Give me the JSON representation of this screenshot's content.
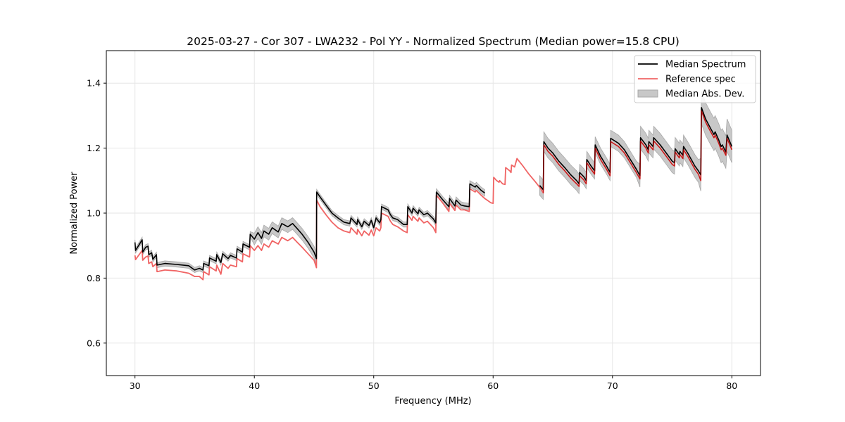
{
  "chart_data": {
    "type": "line",
    "title": "2025-03-27 - Cor 307 - LWA232 - Pol YY - Normalized Spectrum (Median power=15.8 CPU)",
    "xlabel": "Frequency (MHz)",
    "ylabel": "Normalized Power",
    "xlim": [
      27.6,
      82.4
    ],
    "ylim": [
      0.5,
      1.5
    ],
    "xticks": [
      30,
      40,
      50,
      60,
      70,
      80
    ],
    "yticks": [
      0.6,
      0.8,
      1.0,
      1.2,
      1.4
    ],
    "ytick_labels": [
      "0.6",
      "0.8",
      "1.0",
      "1.2",
      "1.4"
    ],
    "grid": true,
    "legend_position": "top-right",
    "legend": [
      {
        "name": "Median Spectrum",
        "color": "#000000",
        "kind": "line"
      },
      {
        "name": "Reference spec",
        "color": "#f06464",
        "kind": "line"
      },
      {
        "name": "Median Abs. Dev.",
        "color": "#c8c8c8",
        "kind": "band"
      }
    ],
    "median_segments": [
      [
        [
          30.0,
          0.91
        ],
        [
          30.05,
          0.885
        ],
        [
          30.3,
          0.9
        ],
        [
          30.6,
          0.918
        ],
        [
          30.65,
          0.88
        ],
        [
          30.9,
          0.895
        ],
        [
          31.1,
          0.898
        ],
        [
          31.15,
          0.872
        ],
        [
          31.4,
          0.878
        ],
        [
          31.5,
          0.858
        ],
        [
          31.8,
          0.872
        ],
        [
          31.85,
          0.84
        ],
        [
          32.5,
          0.845
        ],
        [
          33.5,
          0.842
        ],
        [
          34.5,
          0.838
        ],
        [
          35.0,
          0.825
        ],
        [
          35.4,
          0.83
        ],
        [
          35.7,
          0.825
        ],
        [
          35.75,
          0.845
        ],
        [
          36.2,
          0.838
        ],
        [
          36.25,
          0.862
        ],
        [
          36.8,
          0.852
        ],
        [
          36.85,
          0.872
        ],
        [
          37.2,
          0.848
        ],
        [
          37.35,
          0.875
        ],
        [
          37.8,
          0.86
        ],
        [
          38.0,
          0.87
        ],
        [
          38.5,
          0.862
        ],
        [
          38.55,
          0.89
        ],
        [
          39.0,
          0.88
        ],
        [
          39.05,
          0.905
        ],
        [
          39.6,
          0.895
        ],
        [
          39.65,
          0.935
        ],
        [
          40.0,
          0.92
        ],
        [
          40.3,
          0.94
        ],
        [
          40.6,
          0.922
        ],
        [
          40.8,
          0.945
        ],
        [
          41.2,
          0.935
        ],
        [
          41.5,
          0.955
        ],
        [
          42.0,
          0.942
        ],
        [
          42.3,
          0.968
        ],
        [
          42.8,
          0.958
        ],
        [
          43.2,
          0.968
        ],
        [
          43.6,
          0.952
        ],
        [
          44.0,
          0.935
        ],
        [
          44.5,
          0.91
        ],
        [
          45.0,
          0.88
        ],
        [
          45.2,
          0.86
        ],
        [
          45.22,
          1.065
        ],
        [
          45.5,
          1.05
        ],
        [
          46.0,
          1.025
        ],
        [
          46.5,
          1.0
        ],
        [
          47.0,
          0.985
        ],
        [
          47.5,
          0.972
        ],
        [
          48.0,
          0.968
        ],
        [
          48.1,
          0.985
        ],
        [
          48.6,
          0.965
        ],
        [
          48.65,
          0.98
        ],
        [
          49.0,
          0.958
        ],
        [
          49.2,
          0.975
        ],
        [
          49.6,
          0.962
        ],
        [
          49.8,
          0.978
        ],
        [
          50.0,
          0.955
        ],
        [
          50.2,
          0.985
        ],
        [
          50.5,
          0.97
        ],
        [
          50.6,
          0.98
        ],
        [
          50.65,
          1.02
        ],
        [
          51.2,
          1.01
        ],
        [
          51.4,
          0.995
        ],
        [
          51.6,
          0.985
        ],
        [
          52.0,
          0.98
        ],
        [
          52.5,
          0.965
        ],
        [
          52.8,
          0.965
        ],
        [
          52.85,
          1.02
        ],
        [
          53.2,
          1.0
        ],
        [
          53.3,
          1.015
        ],
        [
          53.7,
          0.998
        ],
        [
          53.8,
          1.01
        ],
        [
          54.2,
          0.995
        ],
        [
          54.5,
          1.0
        ],
        [
          55.0,
          0.982
        ],
        [
          55.2,
          0.97
        ],
        [
          55.25,
          1.065
        ],
        [
          55.8,
          1.04
        ],
        [
          56.3,
          1.02
        ],
        [
          56.35,
          1.045
        ],
        [
          56.8,
          1.022
        ],
        [
          56.9,
          1.04
        ],
        [
          57.3,
          1.025
        ],
        [
          57.6,
          1.022
        ],
        [
          58.0,
          1.02
        ],
        [
          58.05,
          1.09
        ],
        [
          58.5,
          1.08
        ],
        [
          58.6,
          1.085
        ],
        [
          59.0,
          1.07
        ],
        [
          59.3,
          1.062
        ]
      ],
      [
        [
          63.9,
          1.085
        ],
        [
          64.2,
          1.072
        ],
        [
          64.25,
          1.22
        ],
        [
          64.6,
          1.2
        ],
        [
          65.0,
          1.185
        ],
        [
          65.5,
          1.16
        ],
        [
          66.0,
          1.14
        ],
        [
          66.5,
          1.118
        ],
        [
          67.0,
          1.1
        ],
        [
          67.2,
          1.09
        ],
        [
          67.25,
          1.125
        ],
        [
          67.6,
          1.112
        ],
        [
          67.8,
          1.1
        ],
        [
          67.85,
          1.165
        ],
        [
          68.2,
          1.145
        ],
        [
          68.5,
          1.13
        ],
        [
          68.55,
          1.21
        ],
        [
          69.0,
          1.175
        ],
        [
          69.5,
          1.145
        ],
        [
          69.8,
          1.125
        ],
        [
          69.85,
          1.23
        ],
        [
          70.5,
          1.215
        ],
        [
          71.0,
          1.195
        ],
        [
          71.5,
          1.165
        ],
        [
          72.0,
          1.135
        ],
        [
          72.3,
          1.115
        ],
        [
          72.35,
          1.232
        ],
        [
          72.8,
          1.21
        ],
        [
          73.0,
          1.195
        ],
        [
          73.05,
          1.22
        ],
        [
          73.4,
          1.205
        ],
        [
          73.45,
          1.232
        ],
        [
          74.0,
          1.21
        ],
        [
          74.5,
          1.185
        ],
        [
          75.0,
          1.16
        ],
        [
          75.2,
          1.155
        ],
        [
          75.25,
          1.198
        ],
        [
          75.6,
          1.18
        ],
        [
          75.65,
          1.19
        ],
        [
          75.9,
          1.178
        ],
        [
          75.95,
          1.205
        ],
        [
          76.3,
          1.185
        ],
        [
          76.6,
          1.165
        ],
        [
          76.9,
          1.145
        ],
        [
          77.2,
          1.13
        ],
        [
          77.4,
          1.118
        ],
        [
          77.45,
          1.325
        ],
        [
          77.8,
          1.29
        ],
        [
          78.2,
          1.262
        ],
        [
          78.5,
          1.242
        ],
        [
          78.6,
          1.25
        ],
        [
          78.9,
          1.225
        ],
        [
          79.1,
          1.205
        ],
        [
          79.2,
          1.21
        ],
        [
          79.5,
          1.188
        ],
        [
          79.6,
          1.24
        ],
        [
          80.0,
          1.205
        ]
      ]
    ],
    "reference_curve": [
      [
        30.0,
        0.87
      ],
      [
        30.05,
        0.857
      ],
      [
        30.3,
        0.87
      ],
      [
        30.6,
        0.885
      ],
      [
        30.65,
        0.855
      ],
      [
        30.9,
        0.865
      ],
      [
        31.1,
        0.868
      ],
      [
        31.15,
        0.845
      ],
      [
        31.4,
        0.85
      ],
      [
        31.5,
        0.835
      ],
      [
        31.8,
        0.845
      ],
      [
        31.85,
        0.82
      ],
      [
        32.5,
        0.825
      ],
      [
        33.5,
        0.822
      ],
      [
        34.5,
        0.815
      ],
      [
        35.0,
        0.805
      ],
      [
        35.4,
        0.805
      ],
      [
        35.7,
        0.795
      ],
      [
        35.75,
        0.82
      ],
      [
        36.2,
        0.81
      ],
      [
        36.25,
        0.835
      ],
      [
        36.8,
        0.822
      ],
      [
        36.85,
        0.84
      ],
      [
        37.2,
        0.812
      ],
      [
        37.35,
        0.845
      ],
      [
        37.8,
        0.83
      ],
      [
        38.0,
        0.84
      ],
      [
        38.5,
        0.835
      ],
      [
        38.55,
        0.86
      ],
      [
        39.0,
        0.85
      ],
      [
        39.05,
        0.875
      ],
      [
        39.6,
        0.865
      ],
      [
        39.65,
        0.9
      ],
      [
        40.0,
        0.885
      ],
      [
        40.3,
        0.9
      ],
      [
        40.6,
        0.885
      ],
      [
        40.8,
        0.905
      ],
      [
        41.2,
        0.895
      ],
      [
        41.5,
        0.915
      ],
      [
        42.0,
        0.905
      ],
      [
        42.3,
        0.925
      ],
      [
        42.8,
        0.915
      ],
      [
        43.2,
        0.925
      ],
      [
        43.6,
        0.91
      ],
      [
        44.0,
        0.895
      ],
      [
        44.5,
        0.875
      ],
      [
        45.0,
        0.855
      ],
      [
        45.2,
        0.832
      ],
      [
        45.22,
        1.04
      ],
      [
        45.5,
        1.02
      ],
      [
        46.0,
        0.995
      ],
      [
        46.5,
        0.972
      ],
      [
        47.0,
        0.955
      ],
      [
        47.5,
        0.945
      ],
      [
        48.0,
        0.94
      ],
      [
        48.1,
        0.955
      ],
      [
        48.6,
        0.935
      ],
      [
        48.65,
        0.95
      ],
      [
        49.0,
        0.93
      ],
      [
        49.2,
        0.945
      ],
      [
        49.6,
        0.932
      ],
      [
        49.8,
        0.948
      ],
      [
        50.0,
        0.93
      ],
      [
        50.2,
        0.955
      ],
      [
        50.5,
        0.945
      ],
      [
        50.6,
        0.955
      ],
      [
        50.65,
        1.0
      ],
      [
        51.2,
        0.99
      ],
      [
        51.4,
        0.975
      ],
      [
        51.6,
        0.965
      ],
      [
        52.0,
        0.958
      ],
      [
        52.5,
        0.945
      ],
      [
        52.8,
        0.94
      ],
      [
        52.85,
        0.995
      ],
      [
        53.2,
        0.978
      ],
      [
        53.3,
        0.99
      ],
      [
        53.7,
        0.975
      ],
      [
        53.8,
        0.985
      ],
      [
        54.2,
        0.97
      ],
      [
        54.5,
        0.975
      ],
      [
        55.0,
        0.955
      ],
      [
        55.2,
        0.94
      ],
      [
        55.25,
        1.055
      ],
      [
        55.8,
        1.03
      ],
      [
        56.3,
        1.005
      ],
      [
        56.35,
        1.03
      ],
      [
        56.8,
        1.008
      ],
      [
        56.9,
        1.025
      ],
      [
        57.3,
        1.01
      ],
      [
        57.6,
        1.01
      ],
      [
        58.0,
        1.005
      ],
      [
        58.05,
        1.075
      ],
      [
        58.5,
        1.065
      ],
      [
        58.6,
        1.07
      ],
      [
        59.0,
        1.055
      ],
      [
        59.3,
        1.045
      ],
      [
        59.5,
        1.04
      ],
      [
        59.8,
        1.032
      ],
      [
        60.0,
        1.03
      ],
      [
        60.05,
        1.11
      ],
      [
        60.3,
        1.1
      ],
      [
        60.5,
        1.095
      ],
      [
        60.55,
        1.1
      ],
      [
        60.8,
        1.09
      ],
      [
        61.0,
        1.088
      ],
      [
        61.05,
        1.14
      ],
      [
        61.4,
        1.13
      ],
      [
        61.5,
        1.125
      ],
      [
        61.55,
        1.148
      ],
      [
        61.8,
        1.142
      ],
      [
        62.0,
        1.168
      ],
      [
        62.5,
        1.145
      ],
      [
        63.0,
        1.12
      ],
      [
        63.5,
        1.098
      ],
      [
        64.0,
        1.075
      ],
      [
        64.2,
        1.062
      ],
      [
        64.25,
        1.21
      ],
      [
        64.6,
        1.19
      ],
      [
        65.0,
        1.175
      ],
      [
        65.5,
        1.15
      ],
      [
        66.0,
        1.13
      ],
      [
        66.5,
        1.108
      ],
      [
        67.0,
        1.09
      ],
      [
        67.2,
        1.082
      ],
      [
        67.25,
        1.115
      ],
      [
        67.6,
        1.102
      ],
      [
        67.8,
        1.09
      ],
      [
        67.85,
        1.155
      ],
      [
        68.2,
        1.135
      ],
      [
        68.5,
        1.12
      ],
      [
        68.55,
        1.2
      ],
      [
        69.0,
        1.165
      ],
      [
        69.5,
        1.135
      ],
      [
        69.8,
        1.115
      ],
      [
        69.85,
        1.22
      ],
      [
        70.5,
        1.205
      ],
      [
        71.0,
        1.185
      ],
      [
        71.5,
        1.155
      ],
      [
        72.0,
        1.125
      ],
      [
        72.3,
        1.105
      ],
      [
        72.35,
        1.222
      ],
      [
        72.8,
        1.2
      ],
      [
        73.0,
        1.185
      ],
      [
        73.05,
        1.21
      ],
      [
        73.4,
        1.195
      ],
      [
        73.45,
        1.222
      ],
      [
        74.0,
        1.2
      ],
      [
        74.5,
        1.175
      ],
      [
        75.0,
        1.15
      ],
      [
        75.2,
        1.145
      ],
      [
        75.25,
        1.188
      ],
      [
        75.6,
        1.17
      ],
      [
        75.65,
        1.18
      ],
      [
        75.9,
        1.168
      ],
      [
        75.95,
        1.195
      ],
      [
        76.3,
        1.175
      ],
      [
        76.6,
        1.155
      ],
      [
        76.9,
        1.135
      ],
      [
        77.2,
        1.12
      ],
      [
        77.4,
        1.1
      ],
      [
        77.45,
        1.315
      ],
      [
        77.8,
        1.28
      ],
      [
        78.2,
        1.252
      ],
      [
        78.5,
        1.232
      ],
      [
        78.6,
        1.24
      ],
      [
        78.9,
        1.215
      ],
      [
        79.1,
        1.195
      ],
      [
        79.2,
        1.2
      ],
      [
        79.5,
        1.178
      ],
      [
        79.6,
        1.23
      ],
      [
        80.0,
        1.195
      ]
    ],
    "mad_band": [
      {
        "x_range": [
          30.0,
          59.3
        ],
        "halfwidth": 0.008
      },
      {
        "x_range": [
          40.0,
          45.2
        ],
        "halfwidth": 0.018
      },
      {
        "x_range": [
          55.2,
          59.3
        ],
        "halfwidth": 0.01
      },
      {
        "x_range": [
          63.9,
          67.2
        ],
        "halfwidth": 0.03
      },
      {
        "x_range": [
          67.2,
          72.3
        ],
        "halfwidth": 0.025
      },
      {
        "x_range": [
          72.3,
          77.4
        ],
        "halfwidth": 0.035
      },
      {
        "x_range": [
          77.4,
          80.0
        ],
        "halfwidth": 0.05
      }
    ]
  }
}
